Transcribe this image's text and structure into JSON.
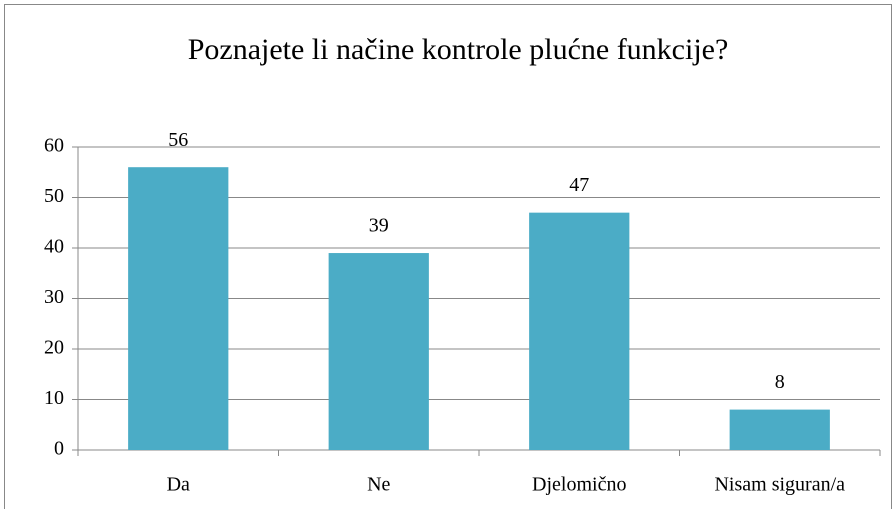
{
  "chart_data": {
    "type": "bar",
    "title": "Poznajete li načine kontrole plućne funkcije?",
    "categories": [
      "Da",
      "Ne",
      "Djelomično",
      "Nisam siguran/a"
    ],
    "values": [
      56,
      39,
      47,
      8
    ],
    "color": "#4bacc6",
    "ylim": [
      0,
      60
    ],
    "yticks": [
      0,
      10,
      20,
      30,
      40,
      50,
      60
    ],
    "grid": true
  }
}
